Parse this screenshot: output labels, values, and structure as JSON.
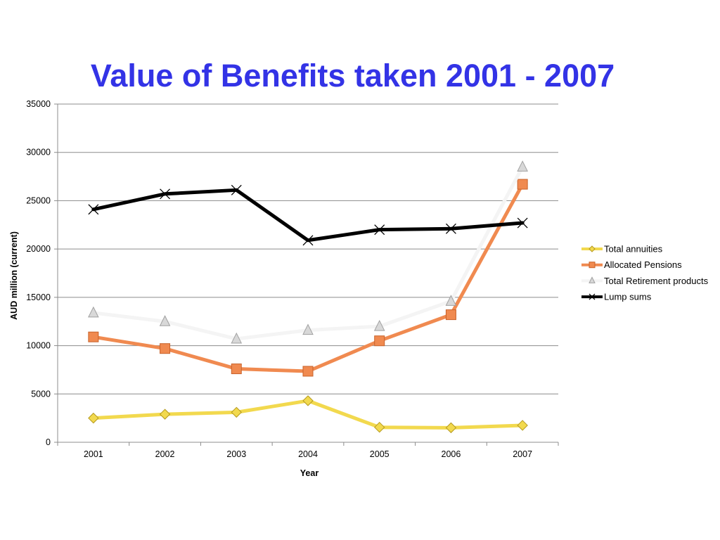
{
  "chart_data": {
    "type": "line",
    "title": "Value of Benefits taken 2001 - 2007",
    "xlabel": "Year",
    "ylabel": "AUD million  (current)",
    "categories": [
      "2001",
      "2002",
      "2003",
      "2004",
      "2005",
      "2006",
      "2007"
    ],
    "ylim": [
      0,
      35000
    ],
    "yticks": [
      0,
      5000,
      10000,
      15000,
      20000,
      25000,
      30000,
      35000
    ],
    "grid": true,
    "legend_position": "right",
    "series": [
      {
        "name": "Total annuities",
        "color": "#f2d94e",
        "marker": "diamond",
        "values": [
          2500,
          2900,
          3100,
          4300,
          1550,
          1500,
          1750
        ]
      },
      {
        "name": "Allocated Pensions",
        "color": "#f08a50",
        "marker": "square",
        "values": [
          10900,
          9700,
          7600,
          7350,
          10500,
          13200,
          26700
        ]
      },
      {
        "name": "Total Retirement products",
        "color": "#f4f4f4",
        "marker": "triangle",
        "values": [
          13400,
          12500,
          10700,
          11600,
          12000,
          14600,
          28500
        ]
      },
      {
        "name": "Lump sums",
        "color": "#000000",
        "marker": "x",
        "values": [
          24100,
          25700,
          26100,
          20900,
          22000,
          22100,
          22700
        ]
      }
    ]
  }
}
